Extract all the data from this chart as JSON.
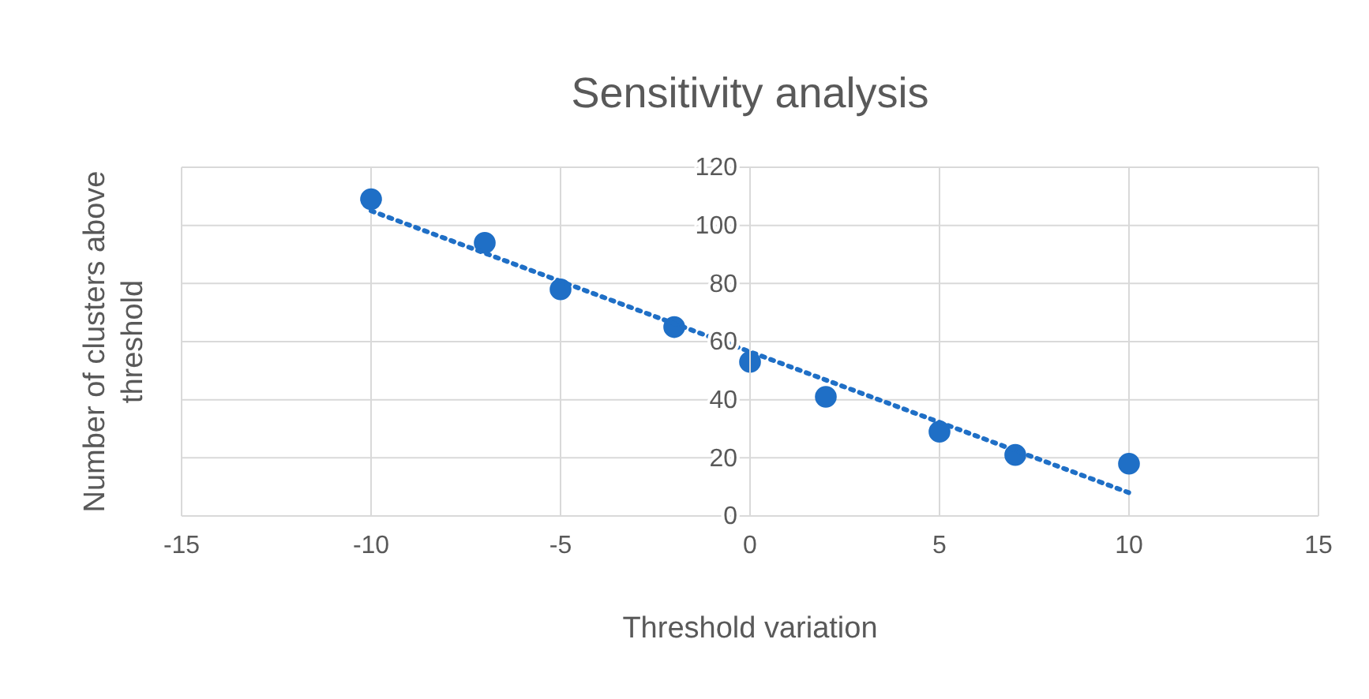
{
  "chart_data": {
    "type": "scatter",
    "title": "Sensitivity analysis",
    "xlabel": "Threshold variation",
    "ylabel": "Number of clusters above threshold",
    "xlim": [
      -15,
      15
    ],
    "xticks": [
      -15,
      -10,
      -5,
      0,
      5,
      10,
      15
    ],
    "ylim": [
      0,
      120
    ],
    "yticks": [
      0,
      20,
      40,
      60,
      80,
      100,
      120
    ],
    "grid": true,
    "series": [
      {
        "marker": "circle",
        "color": "#1f6fc6",
        "x": [
          -10,
          -7,
          -5,
          -2,
          0,
          2,
          5,
          7,
          10
        ],
        "values": [
          109,
          94,
          78,
          65,
          53,
          41,
          29,
          21,
          18
        ]
      },
      {
        "type": "line",
        "line_style": "dotted",
        "color": "#1f6fc6",
        "x": [
          -10,
          10
        ],
        "values": [
          105,
          8
        ]
      }
    ]
  }
}
